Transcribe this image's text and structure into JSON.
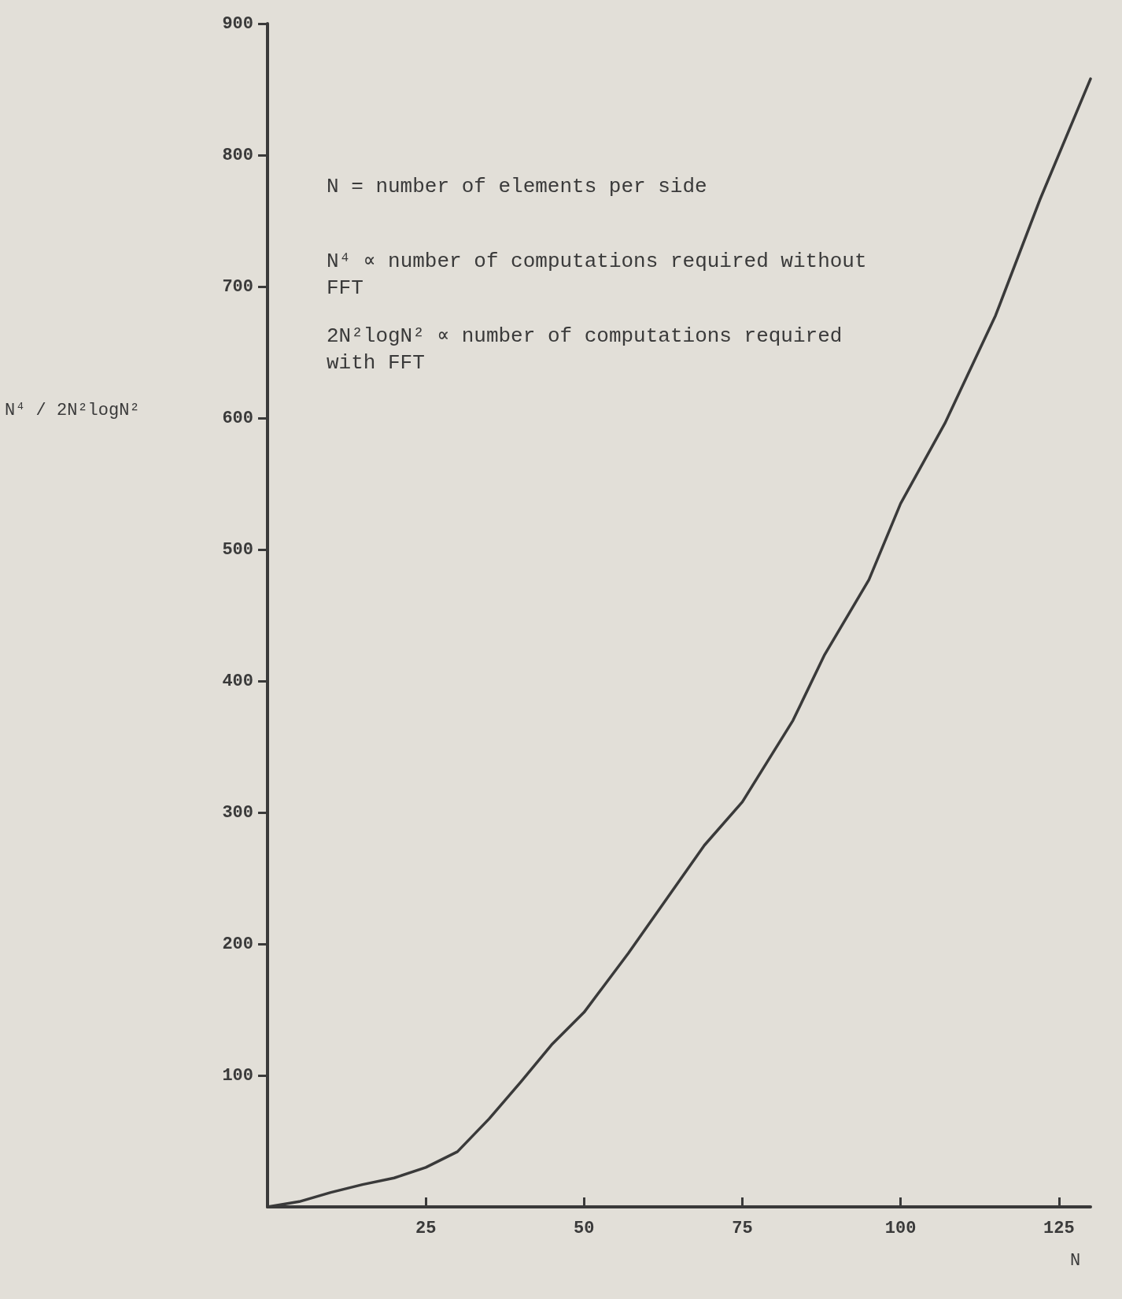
{
  "chart_data": {
    "type": "line",
    "xlabel": "N",
    "ylabel": "N⁴ / 2N²logN²",
    "annotations": [
      "N = number of elements per side",
      "N⁴ ∝ number of computations required without FFT",
      "2N²logN² ∝ number of computations required with FFT"
    ],
    "x": [
      0,
      5,
      10,
      15,
      20,
      25,
      30,
      35,
      40,
      45,
      50,
      57,
      63,
      69,
      75,
      83,
      88,
      95,
      100,
      107,
      115,
      122,
      130
    ],
    "values": [
      0,
      4,
      11,
      17,
      22,
      30,
      42,
      67,
      95,
      124,
      148,
      193,
      234,
      275,
      308,
      370,
      420,
      477,
      535,
      596,
      678,
      766,
      858
    ],
    "color": "#3a3a3a",
    "xlim": [
      0,
      130
    ],
    "ylim": [
      0,
      900
    ],
    "xticks": [
      25,
      50,
      75,
      100,
      125
    ],
    "yticks": [
      100,
      200,
      300,
      400,
      500,
      600,
      700,
      800,
      900
    ]
  }
}
